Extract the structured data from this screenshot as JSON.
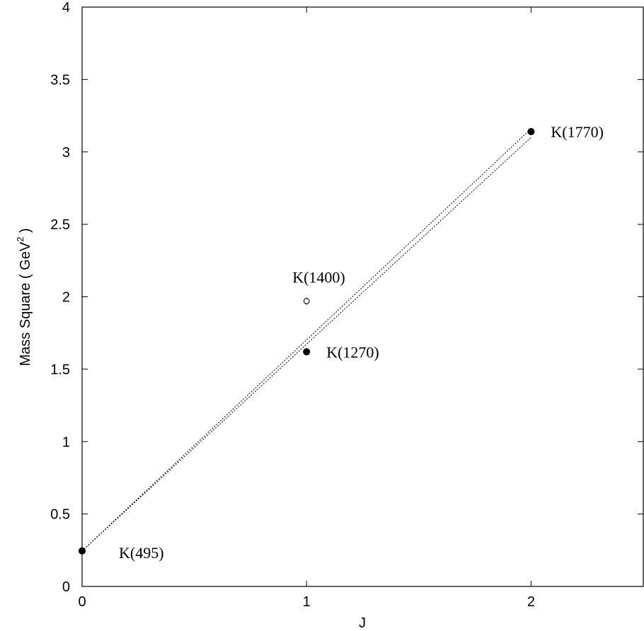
{
  "chart_data": {
    "type": "scatter",
    "xlabel": "J",
    "ylabel_main": "Mass Square ( GeV",
    "ylabel_sup": "2",
    "ylabel_tail": " )",
    "xlim": [
      0,
      2.5
    ],
    "ylim": [
      0,
      4
    ],
    "x_ticks": [
      0,
      1,
      2
    ],
    "x_tick_labels": [
      "0",
      "1",
      "2"
    ],
    "y_ticks": [
      0,
      0.5,
      1,
      1.5,
      2,
      2.5,
      3,
      3.5,
      4
    ],
    "y_tick_labels": [
      "0",
      "0.5",
      "1",
      "1.5",
      "2",
      "2.5",
      "3",
      "3.5",
      "4"
    ],
    "grid": false,
    "points": [
      {
        "label": "K(495)",
        "x": 0,
        "y": 0.245,
        "filled": true,
        "error": 0.0
      },
      {
        "label": "K(1270)",
        "x": 1,
        "y": 1.62,
        "filled": true,
        "error": 0.01
      },
      {
        "label": "K(1400)",
        "x": 1,
        "y": 1.97,
        "filled": false,
        "error": 0.02
      },
      {
        "label": "K(1770)",
        "x": 2,
        "y": 3.14,
        "filled": true,
        "error": 0.02
      }
    ],
    "label_anchor": [
      "lower-right",
      "right",
      "upper-left",
      "right"
    ],
    "lines": [
      {
        "style": "dotted",
        "x": [
          0,
          2
        ],
        "y": [
          0.245,
          3.16
        ]
      },
      {
        "style": "dotted",
        "x": [
          0,
          2
        ],
        "y": [
          0.245,
          3.1
        ]
      }
    ]
  }
}
